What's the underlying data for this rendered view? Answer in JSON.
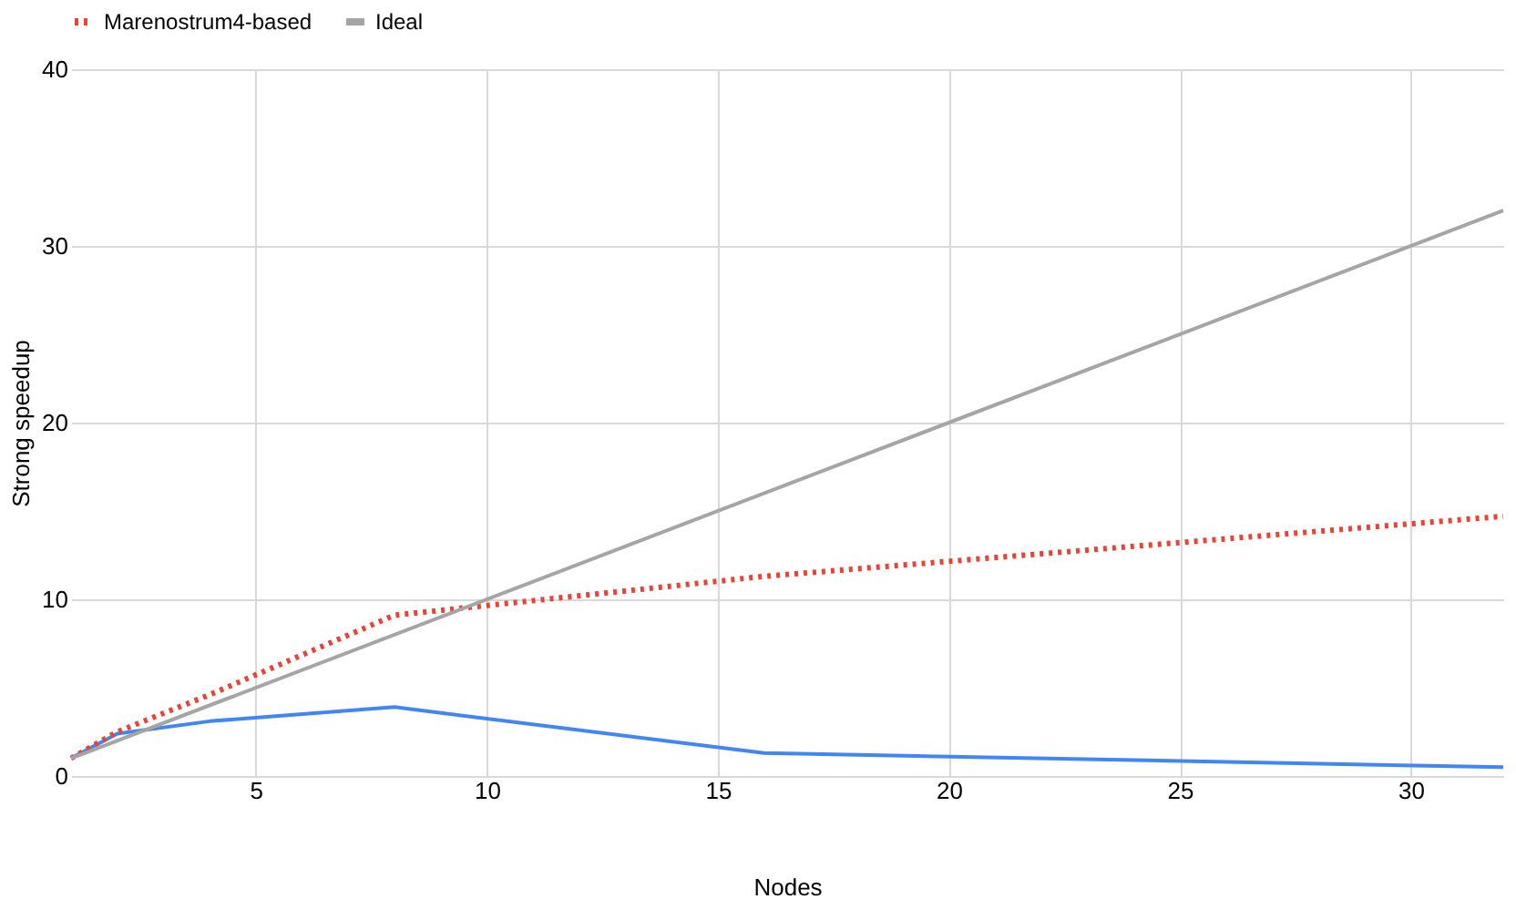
{
  "chart_data": {
    "type": "line",
    "xlabel": "Nodes",
    "ylabel": "Strong speedup",
    "xlim": [
      1,
      32
    ],
    "xticks": [
      5,
      10,
      15,
      20,
      25,
      30
    ],
    "ylim": [
      0,
      40
    ],
    "yticks": [
      0,
      10,
      20,
      30,
      40
    ],
    "grid": true,
    "legend": "top",
    "marker": "none",
    "series": [
      {
        "color": "#4285f4",
        "line_style": "solid",
        "x": [
          1,
          2,
          4,
          8,
          16,
          32
        ],
        "values": [
          1,
          2.4,
          3.1,
          3.9,
          1.3,
          0.5
        ]
      },
      {
        "name": "Marenostrum4-based",
        "color": "#ea4335",
        "line_style": "dotted",
        "x": [
          1,
          2,
          4,
          8,
          16,
          32
        ],
        "values": [
          1,
          2.5,
          4.6,
          9.1,
          11.3,
          14.7
        ]
      },
      {
        "name": "Ideal",
        "color": "#a5a5a5",
        "line_style": "solid",
        "x": [
          1,
          32
        ],
        "values": [
          1,
          32
        ]
      }
    ]
  }
}
